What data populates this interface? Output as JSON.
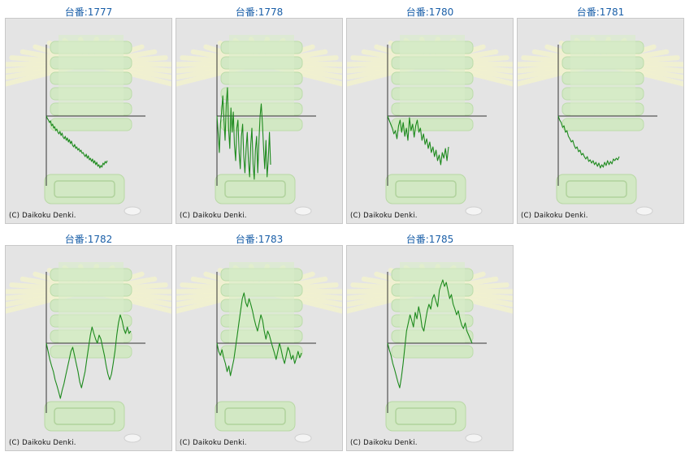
{
  "copyright": "(C) Daikoku Denki.",
  "colors": {
    "line": "#1d8a1d",
    "axis": "#333333",
    "title": "#1a5fa8",
    "panel": "#e4e4e4"
  },
  "chart_data": [
    {
      "type": "line",
      "title": "台番:1777",
      "y": [
        0,
        -3,
        -5,
        -8,
        -6,
        -12,
        -10,
        -15,
        -13,
        -18,
        -16,
        -20,
        -22,
        -19,
        -24,
        -21,
        -26,
        -28,
        -25,
        -30,
        -27,
        -32,
        -29,
        -34,
        -31,
        -36,
        -38,
        -35,
        -40,
        -38,
        -42,
        -40,
        -44,
        -42,
        -46,
        -45,
        -48,
        -50,
        -47,
        -52,
        -49,
        -54,
        -52,
        -56,
        -53,
        -58,
        -55,
        -60,
        -57,
        -62,
        -60,
        -64,
        -61,
        -63,
        -58,
        -60,
        -56,
        -58,
        -55
      ]
    },
    {
      "type": "line",
      "title": "台番:1778",
      "y": [
        0,
        -20,
        -45,
        -10,
        5,
        25,
        -5,
        -30,
        15,
        35,
        -15,
        -40,
        10,
        -20,
        5,
        -35,
        -55,
        -15,
        -5,
        -45,
        -65,
        -25,
        -10,
        -50,
        -70,
        -40,
        -20,
        -55,
        -75,
        -35,
        -15,
        -60,
        -78,
        -42,
        -25,
        -70,
        -30,
        0,
        15,
        -10,
        -40,
        -65,
        -30,
        -75,
        -55,
        -20,
        -60
      ]
    },
    {
      "type": "line",
      "title": "台番:1780",
      "y": [
        0,
        -5,
        -10,
        -15,
        -22,
        -18,
        -28,
        -12,
        -5,
        -20,
        -8,
        -25,
        -15,
        -30,
        -2,
        -18,
        -10,
        -26,
        -12,
        -5,
        -20,
        -15,
        -30,
        -22,
        -35,
        -28,
        -40,
        -32,
        -45,
        -38,
        -50,
        -42,
        -55,
        -48,
        -60,
        -45,
        -52,
        -40,
        -55,
        -38
      ]
    },
    {
      "type": "line",
      "title": "台番:1781",
      "y": [
        0,
        -5,
        -8,
        -14,
        -12,
        -20,
        -18,
        -25,
        -28,
        -32,
        -30,
        -36,
        -40,
        -38,
        -44,
        -42,
        -48,
        -46,
        -50,
        -53,
        -50,
        -56,
        -54,
        -58,
        -55,
        -60,
        -57,
        -62,
        -58,
        -64,
        -60,
        -63,
        -57,
        -61,
        -55,
        -60,
        -56,
        -59,
        -53,
        -55,
        -52,
        -54,
        -50
      ]
    },
    {
      "type": "line",
      "title": "台番:1782",
      "y": [
        0,
        -10,
        -20,
        -28,
        -35,
        -45,
        -52,
        -60,
        -68,
        -58,
        -50,
        -40,
        -30,
        -20,
        -10,
        -5,
        -15,
        -25,
        -35,
        -48,
        -55,
        -45,
        -35,
        -20,
        -5,
        10,
        20,
        12,
        5,
        0,
        10,
        5,
        -5,
        -15,
        -28,
        -38,
        -45,
        -38,
        -25,
        -10,
        10,
        25,
        35,
        28,
        18,
        12,
        20,
        12,
        15
      ]
    },
    {
      "type": "line",
      "title": "台番:1783",
      "y": [
        0,
        -10,
        -15,
        -8,
        -18,
        -25,
        -35,
        -28,
        -40,
        -30,
        -20,
        -5,
        10,
        25,
        40,
        55,
        62,
        50,
        45,
        55,
        48,
        40,
        30,
        22,
        15,
        25,
        35,
        28,
        15,
        5,
        15,
        10,
        2,
        -5,
        -12,
        -20,
        -10,
        0,
        -8,
        -18,
        -25,
        -15,
        -5,
        -10,
        -20,
        -15,
        -25,
        -18,
        -10,
        -18,
        -12
      ]
    },
    {
      "type": "line",
      "title": "台番:1785",
      "y": [
        0,
        -8,
        -15,
        -25,
        -32,
        -40,
        -48,
        -55,
        -42,
        -25,
        -5,
        15,
        25,
        35,
        28,
        20,
        38,
        30,
        45,
        35,
        20,
        15,
        28,
        40,
        48,
        42,
        55,
        60,
        52,
        45,
        65,
        72,
        78,
        70,
        75,
        65,
        55,
        60,
        48,
        42,
        35,
        40,
        30,
        22,
        18,
        25,
        15,
        10,
        5,
        0
      ]
    }
  ]
}
